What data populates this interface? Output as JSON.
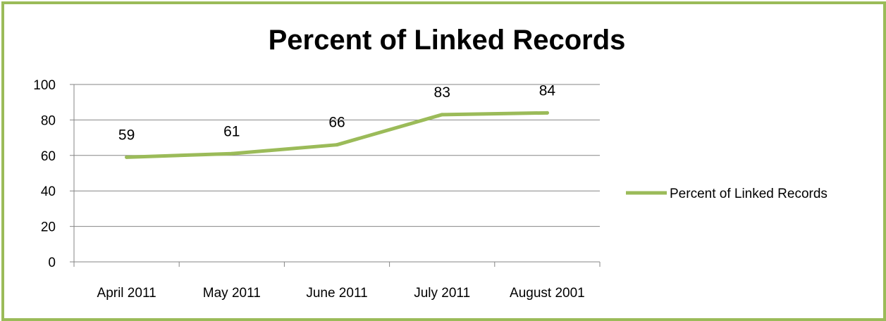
{
  "chart_data": {
    "type": "line",
    "title": "Percent of Linked Records",
    "categories": [
      "April 2011",
      "May 2011",
      "June 2011",
      "July 2011",
      "August 2001"
    ],
    "series": [
      {
        "name": "Percent of Linked Records",
        "values": [
          59,
          61,
          66,
          83,
          84
        ],
        "color": "#9bbb59"
      }
    ],
    "data_labels": [
      "59",
      "61",
      "66",
      "83",
      "84"
    ],
    "ylim": [
      0,
      100
    ],
    "yticks": [
      0,
      20,
      40,
      60,
      80,
      100
    ],
    "xlabel": "",
    "ylabel": "",
    "grid": true,
    "legend_position": "right"
  },
  "colors": {
    "frame_border": "#9bbb59",
    "gridline": "#868686"
  }
}
